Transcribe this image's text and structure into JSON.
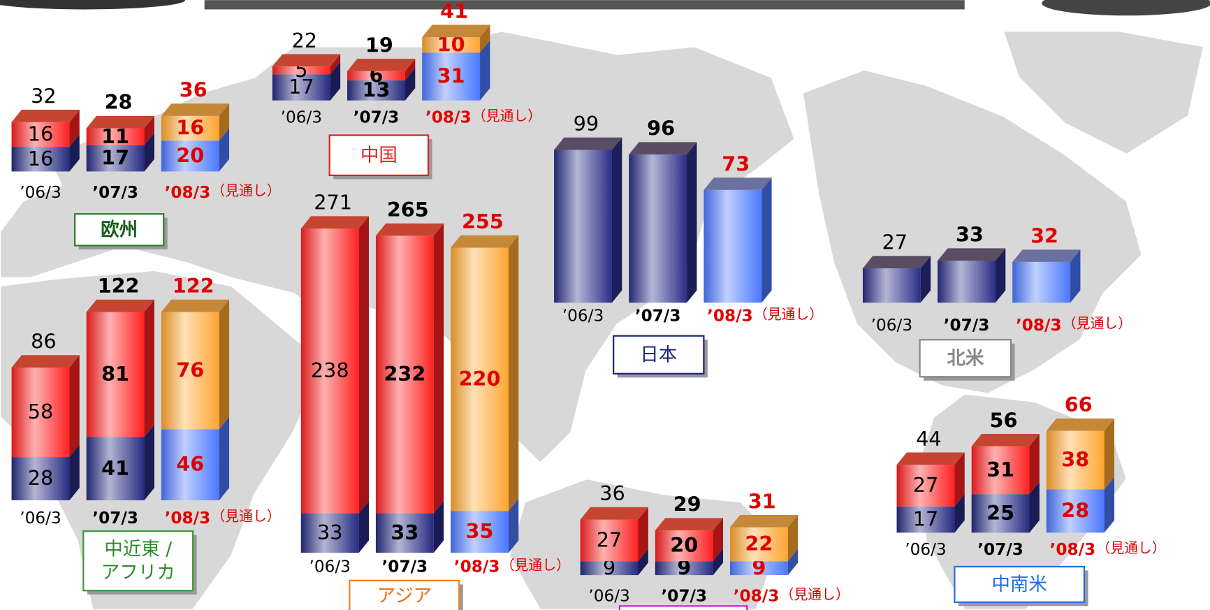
{
  "chart_data": [
    {
      "type": "bar",
      "stacked": true,
      "title": "欧州",
      "categories": [
        "’06/3",
        "’07/3",
        "’08/3"
      ],
      "annotation": "（見通し）",
      "series": [
        {
          "colors": [
            "#262b80",
            "#262b80",
            "#4a78ff"
          ],
          "values": [
            16,
            17,
            20
          ]
        },
        {
          "colors": [
            "#ff2020",
            "#ff2020",
            "#ffa530"
          ],
          "values": [
            16,
            11,
            16
          ]
        }
      ],
      "totals": [
        32,
        28,
        36
      ]
    },
    {
      "type": "bar",
      "stacked": true,
      "title": "中国",
      "categories": [
        "’06/3",
        "’07/3",
        "’08/3"
      ],
      "annotation": "（見通し）",
      "series": [
        {
          "colors": [
            "#262b80",
            "#262b80",
            "#4a78ff"
          ],
          "values": [
            17,
            13,
            31
          ]
        },
        {
          "colors": [
            "#ff2020",
            "#ff2020",
            "#ffa530"
          ],
          "values": [
            5,
            6,
            10
          ]
        }
      ],
      "totals": [
        22,
        19,
        41
      ]
    },
    {
      "type": "bar",
      "stacked": true,
      "title": [
        "中近東 /",
        "アフリカ"
      ],
      "categories": [
        "’06/3",
        "’07/3",
        "’08/3"
      ],
      "annotation": "（見通し）",
      "series": [
        {
          "colors": [
            "#262b80",
            "#262b80",
            "#4a78ff"
          ],
          "values": [
            28,
            41,
            46
          ]
        },
        {
          "colors": [
            "#ff2020",
            "#ff2020",
            "#ffa530"
          ],
          "values": [
            58,
            81,
            76
          ]
        }
      ],
      "totals": [
        86,
        122,
        122
      ]
    },
    {
      "type": "bar",
      "stacked": true,
      "title": "アジア",
      "categories": [
        "’06/3",
        "’07/3",
        "’08/3"
      ],
      "annotation": "（見通し）",
      "series": [
        {
          "colors": [
            "#262b80",
            "#262b80",
            "#4a78ff"
          ],
          "values": [
            33,
            33,
            35
          ]
        },
        {
          "colors": [
            "#ff2020",
            "#ff2020",
            "#ffa530"
          ],
          "values": [
            238,
            232,
            220
          ]
        }
      ],
      "totals": [
        271,
        265,
        255
      ]
    },
    {
      "type": "bar",
      "stacked": false,
      "title": "日本",
      "categories": [
        "’06/3",
        "’07/3",
        "’08/3"
      ],
      "annotation": "（見通し）",
      "series": [
        {
          "colors": [
            "#2a2e86",
            "#2a2e86",
            "#4a78ff"
          ],
          "values": [
            99,
            96,
            73
          ]
        }
      ]
    },
    {
      "type": "bar",
      "stacked": false,
      "title": "北米",
      "categories": [
        "’06/3",
        "’07/3",
        "’08/3"
      ],
      "annotation": "（見通し）",
      "series": [
        {
          "colors": [
            "#2a2e86",
            "#2a2e86",
            "#4a78ff"
          ],
          "values": [
            27,
            33,
            32
          ]
        }
      ]
    },
    {
      "type": "bar",
      "stacked": true,
      "categories": [
        "’06/3",
        "’07/3",
        "’08/3"
      ],
      "annotation": "（見通し）",
      "series": [
        {
          "colors": [
            "#262b80",
            "#262b80",
            "#4a78ff"
          ],
          "values": [
            9,
            9,
            9
          ]
        },
        {
          "colors": [
            "#ff2020",
            "#ff2020",
            "#ffa530"
          ],
          "values": [
            27,
            20,
            22
          ]
        }
      ],
      "totals": [
        36,
        29,
        31
      ]
    },
    {
      "type": "bar",
      "stacked": true,
      "title": "中南米",
      "categories": [
        "’06/3",
        "’07/3",
        "’08/3"
      ],
      "annotation": "（見通し）",
      "series": [
        {
          "colors": [
            "#262b80",
            "#262b80",
            "#4a78ff"
          ],
          "values": [
            17,
            25,
            28
          ]
        },
        {
          "colors": [
            "#ff2020",
            "#ff2020",
            "#ffa530"
          ],
          "values": [
            27,
            31,
            38
          ]
        }
      ],
      "totals": [
        44,
        56,
        66
      ]
    }
  ]
}
